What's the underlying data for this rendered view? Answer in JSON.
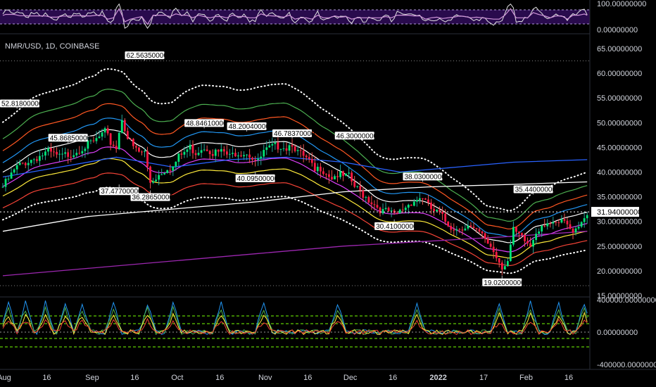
{
  "chart_data": {
    "type": "candlestick",
    "symbol_title": "NMR/USD, 1D, COINBASE",
    "price_axis": {
      "ticks": [
        "65.00000000",
        "60.00000000",
        "55.00000000",
        "50.00000000",
        "45.00000000",
        "40.00000000",
        "35.00000000",
        "30.00000000",
        "25.00000000",
        "20.00000000",
        "15.00000000"
      ],
      "tick_values": [
        65,
        60,
        55,
        50,
        45,
        40,
        35,
        30,
        25,
        20,
        15
      ],
      "ylim": [
        15,
        65
      ]
    },
    "rsi_axis": {
      "ticks": [
        "100.00000000",
        "0.00000000"
      ],
      "tick_values": [
        100,
        0
      ],
      "ylim": [
        0,
        100
      ]
    },
    "osc_axis": {
      "ticks": [
        "400000.00000000",
        "0.00000000",
        "-400000.00000000"
      ],
      "tick_values": [
        400000,
        0,
        -400000
      ],
      "ylim": [
        -400000,
        400000
      ]
    },
    "x_ticks": [
      {
        "label": "Aug",
        "day": 0,
        "bold": false
      },
      {
        "label": "16",
        "day": 15,
        "bold": false
      },
      {
        "label": "Sep",
        "day": 31,
        "bold": false
      },
      {
        "label": "16",
        "day": 46,
        "bold": false
      },
      {
        "label": "Oct",
        "day": 61,
        "bold": false
      },
      {
        "label": "16",
        "day": 76,
        "bold": false
      },
      {
        "label": "Nov",
        "day": 92,
        "bold": false
      },
      {
        "label": "16",
        "day": 107,
        "bold": false
      },
      {
        "label": "Dec",
        "day": 122,
        "bold": false
      },
      {
        "label": "16",
        "day": 137,
        "bold": false
      },
      {
        "label": "2022",
        "day": 153,
        "bold": true
      },
      {
        "label": "17",
        "day": 169,
        "bold": false
      },
      {
        "label": "Feb",
        "day": 184,
        "bold": false
      },
      {
        "label": "16",
        "day": 199,
        "bold": false
      }
    ],
    "last_price": {
      "label": "31.94000000",
      "value": 31.94
    },
    "annotations": [
      {
        "label": "52.81800000",
        "day": 5,
        "value": 52.818,
        "pos": "above"
      },
      {
        "label": "45.86850000",
        "day": 23,
        "value": 45.8685,
        "pos": "above"
      },
      {
        "label": "62.56350000",
        "day": 50,
        "value": 62.5635,
        "pos": "above"
      },
      {
        "label": "37.47700000",
        "day": 41,
        "value": 37.477,
        "pos": "below"
      },
      {
        "label": "36.28650000",
        "day": 52,
        "value": 36.2865,
        "pos": "below"
      },
      {
        "label": "48.84610000",
        "day": 71,
        "value": 48.8461,
        "pos": "above"
      },
      {
        "label": "48.20040000",
        "day": 86,
        "value": 48.2004,
        "pos": "above"
      },
      {
        "label": "46.78370000",
        "day": 102,
        "value": 46.7837,
        "pos": "above"
      },
      {
        "label": "40.09500000",
        "day": 89,
        "value": 40.095,
        "pos": "below"
      },
      {
        "label": "46.30000000",
        "day": 124,
        "value": 46.3,
        "pos": "above"
      },
      {
        "label": "38.03000000",
        "day": 148,
        "value": 38.03,
        "pos": "above"
      },
      {
        "label": "30.41000000",
        "day": 138,
        "value": 30.41,
        "pos": "below"
      },
      {
        "label": "35.44000000",
        "day": 187,
        "value": 35.44,
        "pos": "above"
      },
      {
        "label": "19.02000000",
        "day": 176,
        "value": 19.02,
        "pos": "below"
      }
    ],
    "price_anchors": [
      [
        0,
        37
      ],
      [
        5,
        41
      ],
      [
        8,
        42
      ],
      [
        12,
        43
      ],
      [
        16,
        44
      ],
      [
        20,
        43
      ],
      [
        25,
        44
      ],
      [
        28,
        45
      ],
      [
        32,
        46
      ],
      [
        36,
        48
      ],
      [
        38,
        46
      ],
      [
        40,
        45
      ],
      [
        42,
        51
      ],
      [
        44,
        47
      ],
      [
        46,
        45
      ],
      [
        48,
        44
      ],
      [
        50,
        44
      ],
      [
        52,
        38
      ],
      [
        54,
        39
      ],
      [
        56,
        40
      ],
      [
        58,
        41
      ],
      [
        60,
        41
      ],
      [
        62,
        43
      ],
      [
        64,
        44
      ],
      [
        66,
        45
      ],
      [
        68,
        44
      ],
      [
        70,
        45
      ],
      [
        72,
        45
      ],
      [
        74,
        44
      ],
      [
        76,
        44
      ],
      [
        78,
        44
      ],
      [
        80,
        43
      ],
      [
        82,
        44
      ],
      [
        84,
        44
      ],
      [
        86,
        44
      ],
      [
        88,
        43
      ],
      [
        90,
        42
      ],
      [
        92,
        44
      ],
      [
        95,
        45
      ],
      [
        98,
        45.5
      ],
      [
        100,
        45
      ],
      [
        102,
        46
      ],
      [
        104,
        44
      ],
      [
        106,
        43
      ],
      [
        108,
        42
      ],
      [
        110,
        40
      ],
      [
        112,
        41
      ],
      [
        114,
        40
      ],
      [
        116,
        39
      ],
      [
        118,
        39.5
      ],
      [
        120,
        39
      ],
      [
        122,
        39
      ],
      [
        124,
        37
      ],
      [
        126,
        36
      ],
      [
        128,
        35
      ],
      [
        130,
        34
      ],
      [
        132,
        33
      ],
      [
        134,
        32
      ],
      [
        136,
        32
      ],
      [
        138,
        31
      ],
      [
        140,
        32
      ],
      [
        142,
        33
      ],
      [
        144,
        34
      ],
      [
        146,
        34.5
      ],
      [
        148,
        35
      ],
      [
        150,
        33
      ],
      [
        152,
        32
      ],
      [
        154,
        31.5
      ],
      [
        156,
        30
      ],
      [
        158,
        29
      ],
      [
        160,
        28.5
      ],
      [
        162,
        29
      ],
      [
        164,
        29
      ],
      [
        166,
        28
      ],
      [
        168,
        27.5
      ],
      [
        170,
        26.5
      ],
      [
        172,
        25
      ],
      [
        174,
        23
      ],
      [
        176,
        21
      ],
      [
        178,
        22
      ],
      [
        180,
        28
      ],
      [
        182,
        27
      ],
      [
        184,
        26
      ],
      [
        186,
        25
      ],
      [
        188,
        28
      ],
      [
        190,
        29.5
      ],
      [
        192,
        30
      ],
      [
        194,
        29
      ],
      [
        196,
        29.5
      ],
      [
        198,
        30
      ],
      [
        200,
        28
      ],
      [
        202,
        29
      ],
      [
        204,
        30
      ],
      [
        206,
        31.94
      ]
    ],
    "overlay_lines": [
      {
        "name": "",
        "color": "#2962ff",
        "points": [
          [
            0,
            39
          ],
          [
            20,
            41
          ],
          [
            40,
            43
          ],
          [
            60,
            41
          ],
          [
            80,
            42.5
          ],
          [
            100,
            43
          ],
          [
            120,
            42
          ],
          [
            140,
            40
          ],
          [
            160,
            41
          ],
          [
            180,
            42
          ],
          [
            206,
            42.5
          ]
        ]
      },
      {
        "name": "",
        "color": "#ffffff",
        "points": [
          [
            0,
            28
          ],
          [
            30,
            31
          ],
          [
            60,
            32.5
          ],
          [
            90,
            34
          ],
          [
            120,
            36
          ],
          [
            150,
            37
          ],
          [
            180,
            37.5
          ],
          [
            206,
            38
          ]
        ]
      },
      {
        "name": "",
        "color": "#9c27b0",
        "points": [
          [
            0,
            19
          ],
          [
            30,
            20.5
          ],
          [
            60,
            22
          ],
          [
            90,
            23.5
          ],
          [
            120,
            25
          ],
          [
            150,
            26
          ],
          [
            180,
            27
          ],
          [
            206,
            28
          ]
        ]
      }
    ],
    "bands": [
      {
        "name": "",
        "color": "#ffffff",
        "dotted": true,
        "offset": 12
      },
      {
        "name": "",
        "color": "#4caf50",
        "dotted": false,
        "offset": 8.5
      },
      {
        "name": "",
        "color": "#ff5722",
        "dotted": false,
        "offset": 6
      },
      {
        "name": "",
        "color": "#2196f3",
        "dotted": false,
        "offset": 3.5
      },
      {
        "name": "",
        "color": "#ffffff",
        "dotted": false,
        "offset": 1.5
      },
      {
        "name": "",
        "color": "#e040fb",
        "dotted": false,
        "offset": -1.5
      },
      {
        "name": "",
        "color": "#ffeb3b",
        "dotted": false,
        "offset": -3.5
      },
      {
        "name": "",
        "color": "#f44336",
        "dotted": false,
        "offset": -6
      },
      {
        "name": "",
        "color": "#ffffff",
        "dotted": true,
        "offset": -8.5
      }
    ],
    "grid": false
  }
}
